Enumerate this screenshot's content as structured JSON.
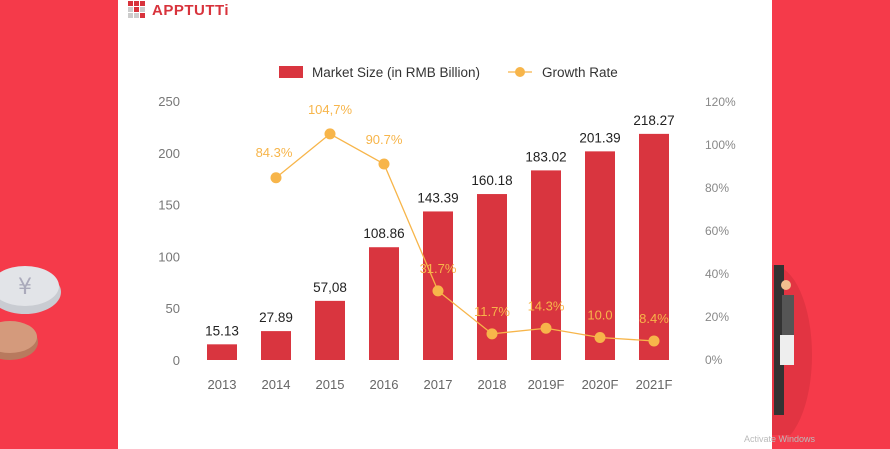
{
  "logo": {
    "text": "APPTUTTi"
  },
  "watermark": "Activate Windows",
  "colors": {
    "bar": "#d9353f",
    "line": "#f7b54a",
    "background": "#f53a4a"
  },
  "chart_data": {
    "type": "bar",
    "categories": [
      "2013",
      "2014",
      "2015",
      "2016",
      "2017",
      "2018",
      "2019F",
      "2020F",
      "2021F"
    ],
    "series": [
      {
        "name": "Market Size (in RMB Billion)",
        "type": "bar",
        "axis": "left",
        "values": [
          15.13,
          27.89,
          57.08,
          108.86,
          143.39,
          160.18,
          183.02,
          201.39,
          218.27
        ],
        "labels": [
          "15.13",
          "27.89",
          "57,08",
          "108.86",
          "143.39",
          "160.18",
          "183.02",
          "201.39",
          "218.27"
        ]
      },
      {
        "name": "Growth Rate",
        "type": "line",
        "axis": "right",
        "values": [
          null,
          84.3,
          104.7,
          90.7,
          31.7,
          11.7,
          14.3,
          10.0,
          8.4
        ],
        "labels": [
          null,
          "84.3%",
          "104,7%",
          "90.7%",
          "31.7%",
          "11.7%",
          "14.3%",
          "10.0",
          "8.4%"
        ]
      }
    ],
    "ylim": [
      0,
      250
    ],
    "yticks": [
      "0",
      "50",
      "100",
      "150",
      "200",
      "250"
    ],
    "y2lim": [
      0,
      120
    ],
    "y2ticks": [
      "0%",
      "20%",
      "40%",
      "60%",
      "80%",
      "100%",
      "120%"
    ],
    "legend": "top",
    "grid": false
  }
}
